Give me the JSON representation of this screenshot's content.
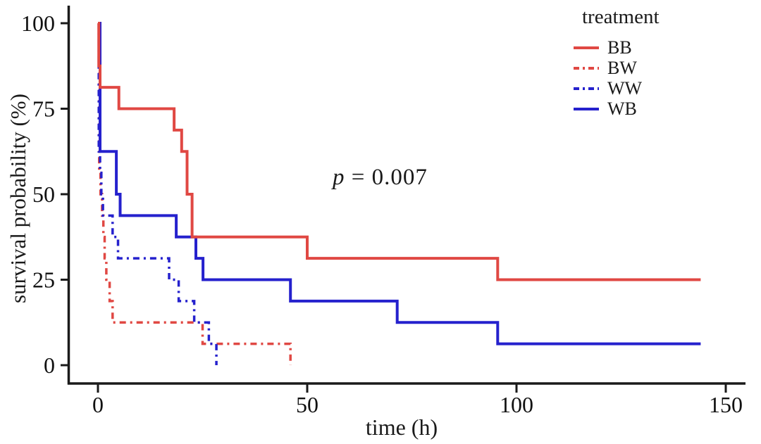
{
  "figure": {
    "legend": {
      "title": "treatment",
      "items": [
        {
          "label": "BB",
          "color": "#e04843",
          "dash": false
        },
        {
          "label": "BW",
          "color": "#e04843",
          "dash": true
        },
        {
          "label": "WW",
          "color": "#2521cd",
          "dash": true
        },
        {
          "label": "WB",
          "color": "#2521cd",
          "dash": false
        }
      ]
    },
    "annotation": {
      "symbol": "p",
      "rest": " = 0.007"
    }
  },
  "chart_data": {
    "type": "line",
    "subtype": "kaplan-meier-step",
    "title": "",
    "xlabel": "time (h)",
    "ylabel": "survival probability (%)",
    "xlim": [
      0,
      150
    ],
    "ylim": [
      0,
      100
    ],
    "xticks": [
      0,
      50,
      100,
      150
    ],
    "yticks": [
      0,
      25,
      50,
      75,
      100
    ],
    "grid": false,
    "legend_title": "treatment",
    "legend_position": "top-right",
    "annotation_text": "p = 0.007",
    "series": [
      {
        "name": "BW",
        "color": "#e04843",
        "style": "dashdot",
        "points": [
          [
            0,
            100
          ],
          [
            0.3,
            56.25
          ],
          [
            0.6,
            50
          ],
          [
            1,
            43.75
          ],
          [
            1.3,
            37.5
          ],
          [
            1.6,
            31.25
          ],
          [
            2,
            25
          ],
          [
            2.8,
            18.75
          ],
          [
            3.5,
            12.5
          ],
          [
            25,
            6.25
          ],
          [
            46,
            0
          ]
        ],
        "end": 46
      },
      {
        "name": "WW",
        "color": "#2521cd",
        "style": "dashdot",
        "points": [
          [
            0,
            100
          ],
          [
            0.2,
            62.5
          ],
          [
            0.5,
            56.25
          ],
          [
            0.8,
            50
          ],
          [
            1.2,
            43.75
          ],
          [
            3.5,
            37.5
          ],
          [
            4.8,
            31.25
          ],
          [
            17,
            25
          ],
          [
            19.3,
            18.75
          ],
          [
            23,
            12.5
          ],
          [
            26.5,
            6.25
          ],
          [
            28.3,
            0
          ]
        ],
        "end": 28.3
      },
      {
        "name": "WB",
        "color": "#2521cd",
        "style": "solid",
        "points": [
          [
            0,
            100
          ],
          [
            0.5,
            62.5
          ],
          [
            4.4,
            50
          ],
          [
            5.3,
            43.75
          ],
          [
            18.7,
            37.5
          ],
          [
            23.4,
            31.25
          ],
          [
            25.1,
            25
          ],
          [
            46,
            18.75
          ],
          [
            71.5,
            12.5
          ],
          [
            95.5,
            6.25
          ]
        ],
        "end": 144
      },
      {
        "name": "BB",
        "color": "#e04843",
        "style": "solid",
        "points": [
          [
            0,
            100
          ],
          [
            0.2,
            87.5
          ],
          [
            0.5,
            81.25
          ],
          [
            5,
            75
          ],
          [
            18.2,
            68.75
          ],
          [
            20,
            62.5
          ],
          [
            21.3,
            50
          ],
          [
            22.5,
            37.5
          ],
          [
            50,
            31.25
          ],
          [
            95.5,
            25
          ]
        ],
        "end": 144
      }
    ]
  }
}
